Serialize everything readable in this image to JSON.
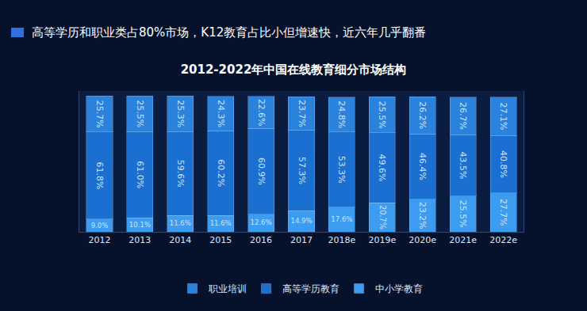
{
  "chart_data": {
    "type": "bar",
    "title": "2012-2022年中国在线教育细分市场结构",
    "subtitle": "高等学历和职业类占80%市场，K12教育占比小但增速快，近六年几乎翻番",
    "categories": [
      "2012",
      "2013",
      "2014",
      "2015",
      "2016",
      "2017",
      "2018e",
      "2019e",
      "2020e",
      "2021e",
      "2022e"
    ],
    "series": [
      {
        "name": "中小学教育",
        "color": "#3b9cf0",
        "values": [
          9.0,
          10.1,
          11.6,
          11.6,
          12.6,
          14.9,
          17.6,
          20.7,
          23.2,
          25.5,
          27.7
        ],
        "value_labels": [
          "9.0%",
          "10.1%",
          "11.6%",
          "11.6%",
          "12.6%",
          "14.9%",
          "17.6%",
          "20.7%",
          "23.2%",
          "25.5%",
          "27.7%"
        ]
      },
      {
        "name": "高等学历教育",
        "color": "#1a6fd0",
        "values": [
          61.8,
          61.0,
          59.6,
          60.2,
          60.9,
          57.3,
          53.3,
          49.6,
          46.4,
          43.5,
          40.8
        ],
        "value_labels": [
          "61.8%",
          "61.0%",
          "59.6%",
          "60.2%",
          "60.9%",
          "57.3%",
          "53.3%",
          "49.6%",
          "46.4%",
          "43.5%",
          "40.8%"
        ]
      },
      {
        "name": "职业培训",
        "color": "#2a82dc",
        "values": [
          25.7,
          25.5,
          25.3,
          24.3,
          22.6,
          23.7,
          24.8,
          25.5,
          26.2,
          26.7,
          27.1
        ],
        "value_labels": [
          "25.7%",
          "25.5%",
          "25.3%",
          "24.3%",
          "22.6%",
          "23.7%",
          "24.8%",
          "25.5%",
          "26.2%",
          "26.7%",
          "27.1%"
        ]
      }
    ],
    "stacked": true,
    "data_labels": true,
    "tick_labels": "x",
    "ylim": [
      0,
      100
    ],
    "yticks": [],
    "grid": false,
    "legend": "bottom"
  }
}
